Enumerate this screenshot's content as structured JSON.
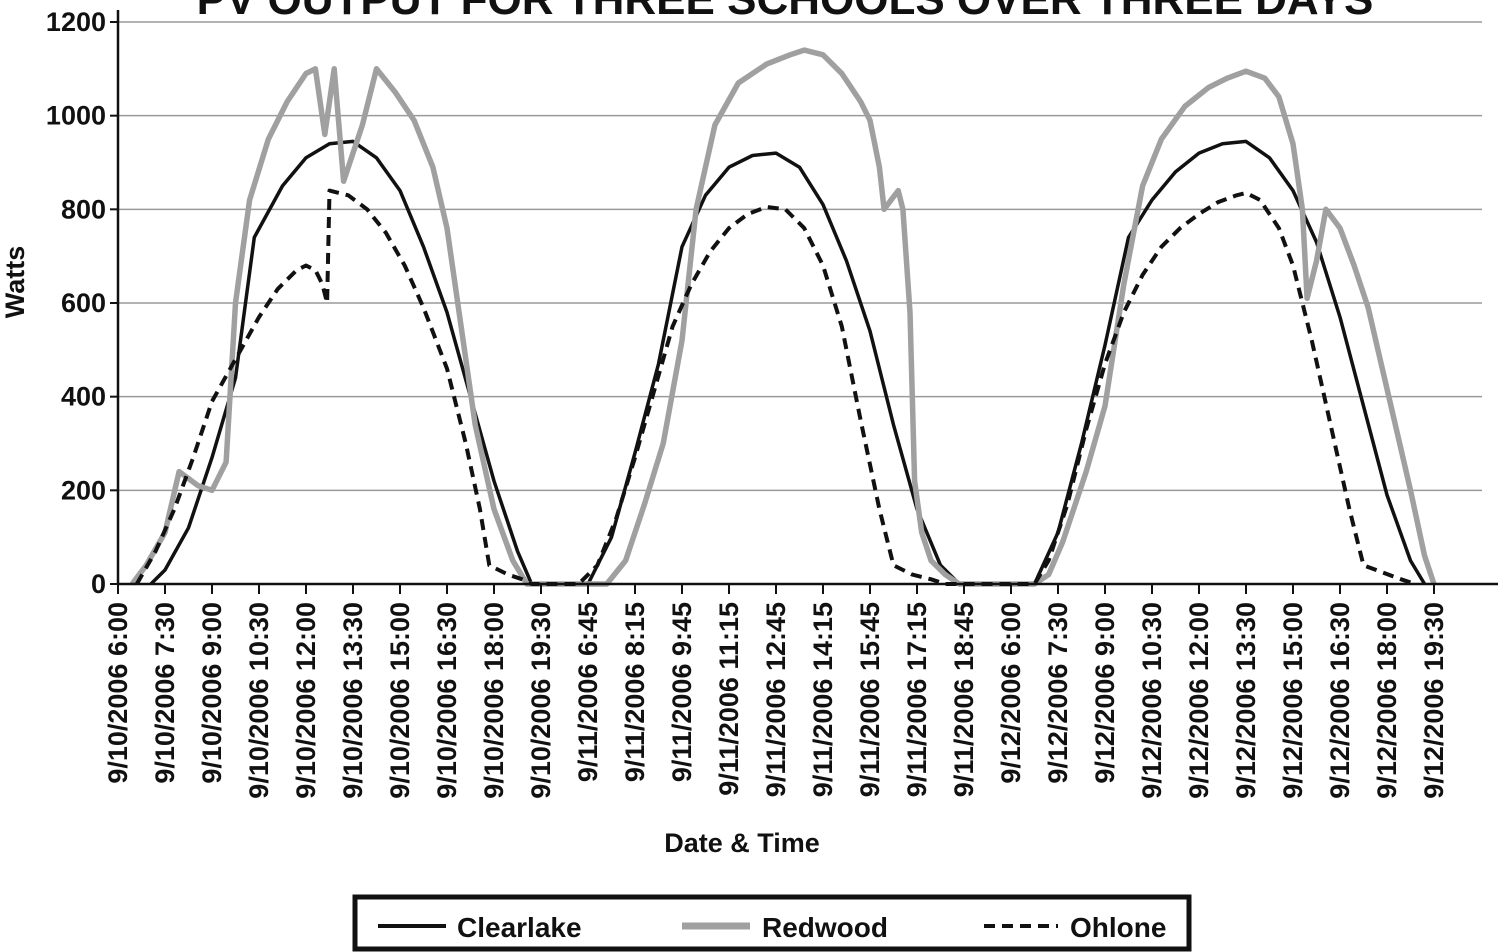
{
  "chart_data": {
    "type": "line",
    "title": "PV OUTPUT FOR THREE SCHOOLS OVER THREE DAYS",
    "xlabel": "Date & Time",
    "ylabel": "Watts",
    "ylim": [
      0,
      1200
    ],
    "yticks": [
      0,
      200,
      400,
      600,
      800,
      1000,
      1200
    ],
    "grid": true,
    "legend_position": "bottom",
    "x_tick_labels": [
      "9/10/2006 6:00",
      "9/10/2006 7:30",
      "9/10/2006 9:00",
      "9/10/2006 10:30",
      "9/10/2006 12:00",
      "9/10/2006 13:30",
      "9/10/2006 15:00",
      "9/10/2006 16:30",
      "9/10/2006 18:00",
      "9/10/2006 19:30",
      "9/11/2006 6:45",
      "9/11/2006 8:15",
      "9/11/2006 9:45",
      "9/11/2006 11:15",
      "9/11/2006 12:45",
      "9/11/2006 14:15",
      "9/11/2006 15:45",
      "9/11/2006 17:15",
      "9/11/2006 18:45",
      "9/12/2006 6:00",
      "9/12/2006 7:30",
      "9/12/2006 9:00",
      "9/12/2006 10:30",
      "9/12/2006 12:00",
      "9/12/2006 13:30",
      "9/12/2006 15:00",
      "9/12/2006 16:30",
      "9/12/2006 18:00",
      "9/12/2006 19:30"
    ],
    "series": [
      {
        "name": "Clearlake",
        "color": "#111111",
        "style": "solid",
        "points": [
          [
            0.7,
            0
          ],
          [
            1.0,
            30
          ],
          [
            1.5,
            120
          ],
          [
            2.0,
            270
          ],
          [
            2.5,
            440
          ],
          [
            2.9,
            740
          ],
          [
            3.5,
            850
          ],
          [
            4.0,
            910
          ],
          [
            4.5,
            940
          ],
          [
            5.0,
            945
          ],
          [
            5.5,
            910
          ],
          [
            6.0,
            840
          ],
          [
            6.5,
            720
          ],
          [
            7.0,
            580
          ],
          [
            7.5,
            400
          ],
          [
            8.0,
            220
          ],
          [
            8.5,
            70
          ],
          [
            8.8,
            0
          ],
          [
            9.7,
            0
          ],
          [
            10.0,
            0
          ],
          [
            10.5,
            100
          ],
          [
            11.0,
            280
          ],
          [
            11.5,
            470
          ],
          [
            12.0,
            720
          ],
          [
            12.5,
            830
          ],
          [
            13.0,
            890
          ],
          [
            13.5,
            915
          ],
          [
            14.0,
            920
          ],
          [
            14.5,
            890
          ],
          [
            15.0,
            810
          ],
          [
            15.5,
            690
          ],
          [
            16.0,
            540
          ],
          [
            16.5,
            340
          ],
          [
            17.0,
            160
          ],
          [
            17.5,
            40
          ],
          [
            17.9,
            0
          ],
          [
            19.3,
            0
          ],
          [
            19.5,
            0
          ],
          [
            20.0,
            110
          ],
          [
            20.5,
            300
          ],
          [
            21.0,
            510
          ],
          [
            21.5,
            740
          ],
          [
            22.0,
            820
          ],
          [
            22.5,
            880
          ],
          [
            23.0,
            920
          ],
          [
            23.5,
            940
          ],
          [
            24.0,
            945
          ],
          [
            24.5,
            910
          ],
          [
            25.0,
            840
          ],
          [
            25.5,
            730
          ],
          [
            26.0,
            570
          ],
          [
            26.5,
            380
          ],
          [
            27.0,
            190
          ],
          [
            27.5,
            50
          ],
          [
            27.8,
            0
          ]
        ]
      },
      {
        "name": "Redwood",
        "color": "#a0a0a0",
        "style": "solid",
        "points": [
          [
            0.3,
            0
          ],
          [
            0.6,
            40
          ],
          [
            1.0,
            110
          ],
          [
            1.3,
            240
          ],
          [
            1.7,
            210
          ],
          [
            2.0,
            200
          ],
          [
            2.3,
            260
          ],
          [
            2.5,
            600
          ],
          [
            2.8,
            820
          ],
          [
            3.2,
            950
          ],
          [
            3.6,
            1030
          ],
          [
            4.0,
            1090
          ],
          [
            4.2,
            1100
          ],
          [
            4.4,
            960
          ],
          [
            4.6,
            1100
          ],
          [
            4.8,
            860
          ],
          [
            5.2,
            980
          ],
          [
            5.5,
            1100
          ],
          [
            5.9,
            1050
          ],
          [
            6.3,
            990
          ],
          [
            6.7,
            890
          ],
          [
            7.0,
            760
          ],
          [
            7.3,
            550
          ],
          [
            7.6,
            340
          ],
          [
            8.0,
            160
          ],
          [
            8.4,
            50
          ],
          [
            8.7,
            0
          ],
          [
            9.8,
            0
          ],
          [
            10.4,
            0
          ],
          [
            10.8,
            50
          ],
          [
            11.2,
            170
          ],
          [
            11.6,
            300
          ],
          [
            12.0,
            520
          ],
          [
            12.3,
            800
          ],
          [
            12.7,
            980
          ],
          [
            13.2,
            1070
          ],
          [
            13.8,
            1110
          ],
          [
            14.3,
            1130
          ],
          [
            14.6,
            1140
          ],
          [
            15.0,
            1130
          ],
          [
            15.4,
            1090
          ],
          [
            15.8,
            1030
          ],
          [
            16.0,
            990
          ],
          [
            16.2,
            890
          ],
          [
            16.3,
            800
          ],
          [
            16.6,
            840
          ],
          [
            16.7,
            800
          ],
          [
            16.85,
            580
          ],
          [
            16.95,
            220
          ],
          [
            17.1,
            110
          ],
          [
            17.3,
            50
          ],
          [
            17.6,
            20
          ],
          [
            17.9,
            0
          ],
          [
            19.3,
            0
          ],
          [
            19.5,
            0
          ],
          [
            19.8,
            20
          ],
          [
            20.1,
            90
          ],
          [
            20.6,
            240
          ],
          [
            21.0,
            380
          ],
          [
            21.4,
            640
          ],
          [
            21.8,
            850
          ],
          [
            22.2,
            950
          ],
          [
            22.7,
            1020
          ],
          [
            23.2,
            1060
          ],
          [
            23.6,
            1080
          ],
          [
            24.0,
            1095
          ],
          [
            24.4,
            1080
          ],
          [
            24.7,
            1040
          ],
          [
            25.0,
            940
          ],
          [
            25.2,
            800
          ],
          [
            25.3,
            610
          ],
          [
            25.5,
            690
          ],
          [
            25.7,
            800
          ],
          [
            26.0,
            760
          ],
          [
            26.3,
            680
          ],
          [
            26.6,
            590
          ],
          [
            26.9,
            460
          ],
          [
            27.2,
            330
          ],
          [
            27.5,
            200
          ],
          [
            27.8,
            60
          ],
          [
            28.0,
            0
          ]
        ]
      },
      {
        "name": "Ohlone",
        "color": "#111111",
        "style": "dashed",
        "points": [
          [
            0.4,
            0
          ],
          [
            0.8,
            70
          ],
          [
            1.2,
            160
          ],
          [
            1.6,
            270
          ],
          [
            2.0,
            390
          ],
          [
            2.5,
            480
          ],
          [
            3.0,
            570
          ],
          [
            3.4,
            630
          ],
          [
            3.8,
            670
          ],
          [
            4.0,
            680
          ],
          [
            4.2,
            670
          ],
          [
            4.35,
            640
          ],
          [
            4.45,
            600
          ],
          [
            4.5,
            840
          ],
          [
            4.9,
            830
          ],
          [
            5.3,
            800
          ],
          [
            5.7,
            750
          ],
          [
            6.1,
            680
          ],
          [
            6.5,
            590
          ],
          [
            7.0,
            460
          ],
          [
            7.4,
            300
          ],
          [
            7.7,
            160
          ],
          [
            7.9,
            40
          ],
          [
            8.3,
            20
          ],
          [
            8.6,
            10
          ],
          [
            8.8,
            0
          ],
          [
            9.5,
            0
          ],
          [
            9.8,
            0
          ],
          [
            10.2,
            40
          ],
          [
            10.6,
            140
          ],
          [
            11.0,
            270
          ],
          [
            11.4,
            410
          ],
          [
            11.8,
            550
          ],
          [
            12.2,
            640
          ],
          [
            12.6,
            710
          ],
          [
            13.0,
            760
          ],
          [
            13.4,
            790
          ],
          [
            13.8,
            805
          ],
          [
            14.2,
            800
          ],
          [
            14.6,
            760
          ],
          [
            15.0,
            680
          ],
          [
            15.4,
            550
          ],
          [
            15.8,
            350
          ],
          [
            16.2,
            160
          ],
          [
            16.5,
            40
          ],
          [
            16.9,
            20
          ],
          [
            17.3,
            10
          ],
          [
            17.6,
            0
          ],
          [
            19.1,
            0
          ],
          [
            19.5,
            0
          ],
          [
            19.8,
            50
          ],
          [
            20.2,
            170
          ],
          [
            20.6,
            330
          ],
          [
            21.0,
            470
          ],
          [
            21.4,
            580
          ],
          [
            21.8,
            660
          ],
          [
            22.2,
            720
          ],
          [
            22.6,
            760
          ],
          [
            23.0,
            790
          ],
          [
            23.4,
            815
          ],
          [
            23.8,
            830
          ],
          [
            24.0,
            835
          ],
          [
            24.3,
            820
          ],
          [
            24.7,
            760
          ],
          [
            25.0,
            680
          ],
          [
            25.4,
            520
          ],
          [
            25.8,
            340
          ],
          [
            26.2,
            160
          ],
          [
            26.5,
            40
          ],
          [
            26.9,
            25
          ],
          [
            27.3,
            10
          ],
          [
            27.6,
            0
          ]
        ]
      }
    ]
  }
}
